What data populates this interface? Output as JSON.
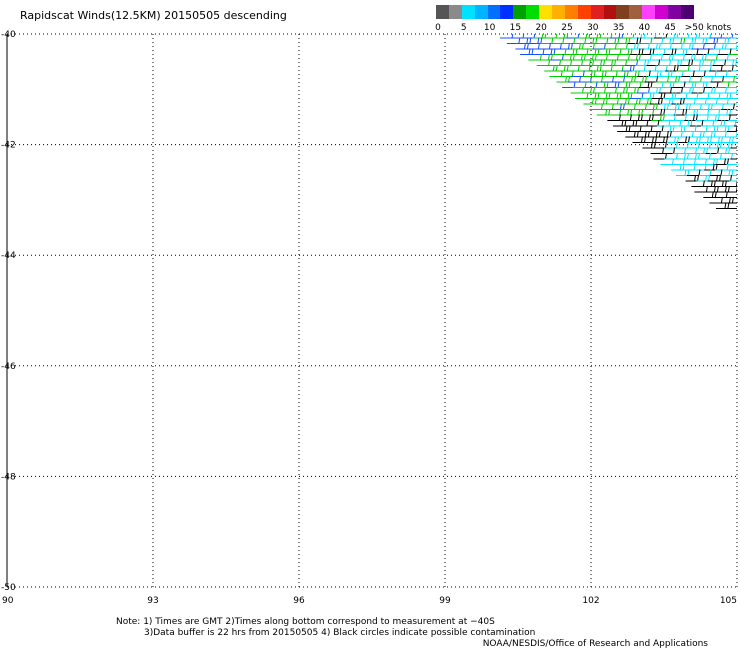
{
  "title": "Rapidscat Winds(12.5KM) 20150505 descending",
  "legend": {
    "colors": [
      "#555555",
      "#8a8a8a",
      "#00e0ff",
      "#00b4ff",
      "#0070ff",
      "#0030ff",
      "#00a000",
      "#00dd00",
      "#ffe000",
      "#ffb000",
      "#ff8000",
      "#ff4000",
      "#e02020",
      "#b01010",
      "#804020",
      "#a06040",
      "#ff40ff",
      "#d000d0",
      "#8000a0",
      "#500070"
    ],
    "labels": [
      "0",
      "5",
      "10",
      "15",
      "20",
      "25",
      "30",
      "35",
      "40",
      "45",
      ">50 knots"
    ]
  },
  "map": {
    "lon_range": [
      90,
      105
    ],
    "lat_range": [
      -40,
      -50
    ],
    "lon_ticks": [
      "90",
      "93",
      "96",
      "99",
      "102",
      "105"
    ],
    "lat_ticks": [
      "-40",
      "-42",
      "-44",
      "-46",
      "-48",
      "-50"
    ],
    "barb_colors": {
      "slow": "#000000",
      "light": "#00e6ff",
      "moderate": "#1450ff",
      "fresh": "#00cc00"
    }
  },
  "notes": {
    "line1": "Note: 1) Times are GMT 2)Times along bottom correspond to measurement at −40S",
    "line2": "3)Data buffer is 22 hrs from 20150505 4) Black circles indicate possible contamination"
  },
  "credit": "NOAA/NESDIS/Office of Research and Applications"
}
